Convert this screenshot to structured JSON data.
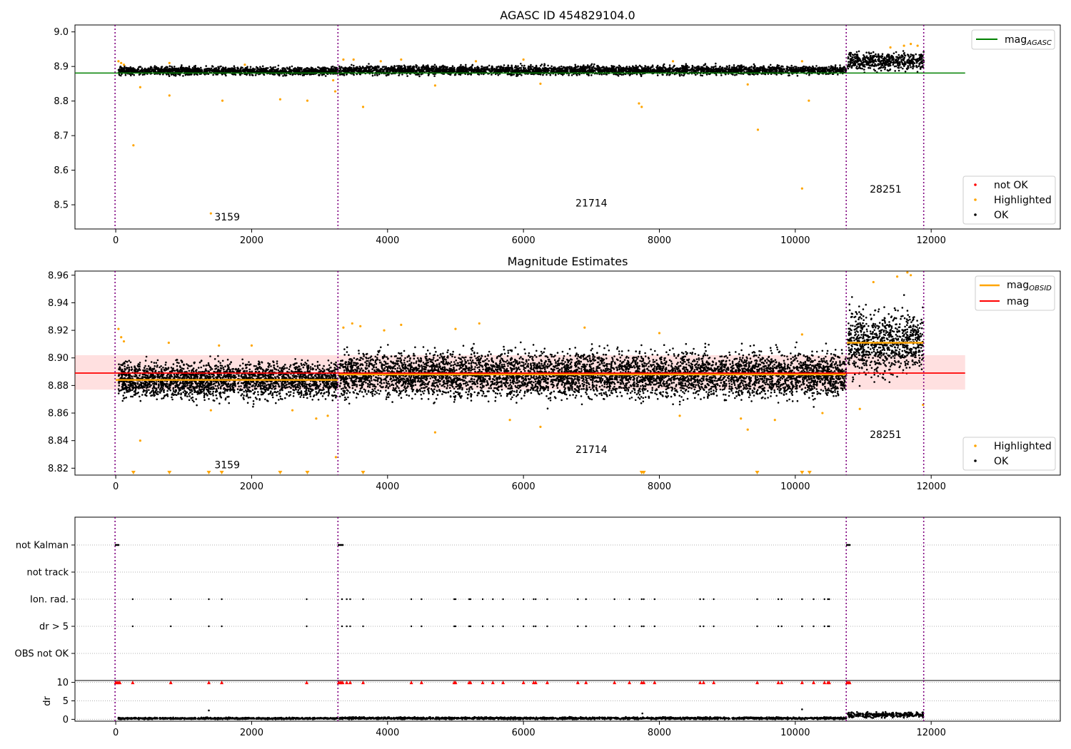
{
  "chart_data": [
    {
      "id": "top",
      "type": "scatter",
      "title": "AGASC ID 454829104.0",
      "xlim": [
        -600,
        13900
      ],
      "ylim": [
        8.43,
        9.02
      ],
      "xticks": [
        0,
        2000,
        4000,
        6000,
        8000,
        10000,
        12000
      ],
      "yticks": [
        8.5,
        8.6,
        8.7,
        8.8,
        8.9,
        9.0
      ],
      "ytick_labels": [
        "8.5",
        "8.6",
        "8.7",
        "8.8",
        "8.9",
        "9.0"
      ],
      "grid": false,
      "vlines": [
        -10,
        3270,
        10750,
        11890
      ],
      "obsid_labels": [
        {
          "text": "3159",
          "x": 1640,
          "y": 8.455
        },
        {
          "text": "21714",
          "x": 7000,
          "y": 8.495
        },
        {
          "text": "28251",
          "x": 11330,
          "y": 8.535
        }
      ],
      "hlines": [
        {
          "name": "mag_AGASC",
          "y": 8.881,
          "x0": -600,
          "x1": 12500,
          "color": "#008000"
        }
      ],
      "ok_segments": [
        {
          "x0": 40,
          "x1": 3270,
          "mean": 8.887,
          "spread": 0.008
        },
        {
          "x0": 3290,
          "x1": 10750,
          "mean": 8.889,
          "spread": 0.009
        },
        {
          "x0": 10770,
          "x1": 11890,
          "mean": 8.915,
          "spread": 0.018
        }
      ],
      "highlighted_points": [
        [
          40,
          8.915
        ],
        [
          80,
          8.91
        ],
        [
          120,
          8.905
        ],
        [
          260,
          8.672
        ],
        [
          360,
          8.84
        ],
        [
          790,
          8.816
        ],
        [
          790,
          8.91
        ],
        [
          1400,
          8.475
        ],
        [
          1570,
          8.801
        ],
        [
          1900,
          8.905
        ],
        [
          2420,
          8.805
        ],
        [
          2820,
          8.801
        ],
        [
          3200,
          8.86
        ],
        [
          3230,
          8.828
        ],
        [
          3350,
          8.92
        ],
        [
          3500,
          8.92
        ],
        [
          3640,
          8.783
        ],
        [
          3900,
          8.915
        ],
        [
          4200,
          8.92
        ],
        [
          4700,
          8.845
        ],
        [
          5300,
          8.915
        ],
        [
          6000,
          8.92
        ],
        [
          6250,
          8.85
        ],
        [
          7700,
          8.793
        ],
        [
          7740,
          8.783
        ],
        [
          8200,
          8.915
        ],
        [
          9450,
          8.717
        ],
        [
          9300,
          8.848
        ],
        [
          10100,
          8.547
        ],
        [
          10200,
          8.801
        ],
        [
          10100,
          8.915
        ],
        [
          11400,
          8.955
        ],
        [
          11600,
          8.96
        ],
        [
          11700,
          8.965
        ],
        [
          11800,
          8.96
        ]
      ],
      "legend_upper": [
        {
          "label": "mag",
          "sub": "AGASC",
          "color": "#008000",
          "kind": "line"
        }
      ],
      "legend_lower": [
        {
          "label": "not OK",
          "color": "#ff0000",
          "kind": "dot"
        },
        {
          "label": "Highlighted",
          "color": "#ffa500",
          "kind": "dot"
        },
        {
          "label": "OK",
          "color": "#000000",
          "kind": "dot"
        }
      ]
    },
    {
      "id": "mid",
      "type": "scatter",
      "title": "Magnitude Estimates",
      "xlim": [
        -600,
        13900
      ],
      "ylim": [
        8.815,
        8.963
      ],
      "xticks": [
        0,
        2000,
        4000,
        6000,
        8000,
        10000,
        12000
      ],
      "yticks": [
        8.82,
        8.84,
        8.86,
        8.88,
        8.9,
        8.92,
        8.94,
        8.96
      ],
      "ytick_labels": [
        "8.82",
        "8.84",
        "8.86",
        "8.88",
        "8.90",
        "8.92",
        "8.94",
        "8.96"
      ],
      "grid": false,
      "vlines": [
        -10,
        3270,
        10750,
        11890
      ],
      "obsid_labels": [
        {
          "text": "3159",
          "x": 1640,
          "y": 8.82
        },
        {
          "text": "21714",
          "x": 7000,
          "y": 8.831
        },
        {
          "text": "28251",
          "x": 11330,
          "y": 8.842
        }
      ],
      "band": {
        "x0": -600,
        "x1": 12500,
        "y0": 8.877,
        "y1": 8.902,
        "color": "#ff0000",
        "opacity": 0.12
      },
      "hlines": [
        {
          "name": "mag",
          "y": 8.889,
          "x0": -600,
          "x1": 12500,
          "color": "#ff0000"
        }
      ],
      "obsid_means": [
        {
          "x0": 0,
          "x1": 3270,
          "y": 8.884
        },
        {
          "x0": 3280,
          "x1": 10750,
          "y": 8.888
        },
        {
          "x0": 10760,
          "x1": 11890,
          "y": 8.911
        }
      ],
      "ok_segments": [
        {
          "x0": 40,
          "x1": 3270,
          "mean": 8.884,
          "spread": 0.009
        },
        {
          "x0": 3290,
          "x1": 10750,
          "mean": 8.888,
          "spread": 0.011
        },
        {
          "x0": 10770,
          "x1": 11890,
          "mean": 8.911,
          "spread": 0.016
        }
      ],
      "highlighted_points": [
        [
          40,
          8.921
        ],
        [
          80,
          8.915
        ],
        [
          120,
          8.912
        ],
        [
          360,
          8.84
        ],
        [
          780,
          8.911
        ],
        [
          1400,
          8.862
        ],
        [
          1520,
          8.909
        ],
        [
          2000,
          8.909
        ],
        [
          2600,
          8.862
        ],
        [
          2950,
          8.856
        ],
        [
          3120,
          8.858
        ],
        [
          3240,
          8.828
        ],
        [
          3350,
          8.922
        ],
        [
          3480,
          8.925
        ],
        [
          3600,
          8.923
        ],
        [
          3950,
          8.92
        ],
        [
          4200,
          8.924
        ],
        [
          4700,
          8.846
        ],
        [
          5000,
          8.921
        ],
        [
          5350,
          8.925
        ],
        [
          5800,
          8.855
        ],
        [
          6250,
          8.85
        ],
        [
          6900,
          8.922
        ],
        [
          8000,
          8.918
        ],
        [
          8300,
          8.858
        ],
        [
          9200,
          8.856
        ],
        [
          9300,
          8.848
        ],
        [
          9700,
          8.855
        ],
        [
          10100,
          8.917
        ],
        [
          10400,
          8.86
        ],
        [
          10950,
          8.863
        ],
        [
          11150,
          8.955
        ],
        [
          11500,
          8.959
        ],
        [
          11650,
          8.962
        ],
        [
          11700,
          8.96
        ],
        [
          11880,
          8.866
        ]
      ],
      "below_range_markers": [
        260,
        790,
        1370,
        1560,
        2420,
        2820,
        3640,
        7740,
        7770,
        9440,
        10100,
        10210
      ],
      "legend_upper": [
        {
          "label": "mag",
          "sub": "OBSID",
          "color": "#ffa500",
          "kind": "line"
        },
        {
          "label": "mag",
          "sub": "",
          "color": "#ff0000",
          "kind": "line"
        }
      ],
      "legend_lower": [
        {
          "label": "Highlighted",
          "color": "#ffa500",
          "kind": "dot"
        },
        {
          "label": "OK",
          "color": "#000000",
          "kind": "dot"
        }
      ]
    },
    {
      "id": "flags",
      "type": "scatter",
      "xlim": [
        -600,
        13900
      ],
      "categories": [
        "not Kalman",
        "not track",
        "Ion. rad.",
        "dr > 5",
        "OBS not OK"
      ],
      "grid": true,
      "vlines": [
        -10,
        3270,
        10750,
        11890
      ],
      "not_kalman_x": [
        0,
        20,
        40,
        3280,
        3300,
        3320,
        3340,
        10760,
        10780,
        10800
      ],
      "ion_rad_x": [
        250,
        810,
        1370,
        1560,
        2810,
        3330,
        3400,
        3450,
        3640,
        4350,
        4500,
        4980,
        5000,
        5200,
        5220,
        5400,
        5550,
        5700,
        6000,
        6150,
        6180,
        6350,
        6800,
        6920,
        7340,
        7560,
        7740,
        7770,
        7930,
        8600,
        8650,
        8800,
        9440,
        9750,
        9800,
        10100,
        10270,
        10430,
        10480,
        10500
      ],
      "dr5_x": [
        250,
        810,
        1370,
        1560,
        2810,
        3330,
        3400,
        3450,
        3640,
        4350,
        4500,
        4980,
        5000,
        5200,
        5220,
        5400,
        5550,
        5700,
        6000,
        6150,
        6180,
        6350,
        6800,
        6920,
        7340,
        7560,
        7740,
        7770,
        7930,
        8600,
        8650,
        8800,
        9440,
        9750,
        9800,
        10100,
        10270,
        10430,
        10480,
        10500
      ]
    },
    {
      "id": "dr",
      "type": "scatter",
      "ylabel": "dr",
      "xlim": [
        -600,
        13900
      ],
      "ylim": [
        -0.5,
        10.5
      ],
      "xticks": [
        0,
        2000,
        4000,
        6000,
        8000,
        10000,
        12000
      ],
      "yticks": [
        0,
        5,
        10
      ],
      "ytick_labels": [
        "0",
        "5",
        "10"
      ],
      "grid": true,
      "vlines": [
        -10,
        3270,
        10750,
        11890
      ],
      "clipped_markers_x": [
        0,
        20,
        40,
        60,
        250,
        810,
        1370,
        1560,
        2810,
        3280,
        3300,
        3320,
        3340,
        3400,
        3450,
        3640,
        4350,
        4500,
        4980,
        5000,
        5200,
        5220,
        5400,
        5550,
        5700,
        6000,
        6150,
        6180,
        6350,
        6800,
        6920,
        7340,
        7560,
        7740,
        7770,
        7930,
        8600,
        8650,
        8800,
        9440,
        9750,
        9800,
        10100,
        10270,
        10430,
        10480,
        10500,
        10760,
        10780,
        10800
      ],
      "ok_segments": [
        {
          "x0": 40,
          "x1": 3270,
          "mean": 0.25,
          "spread": 0.15
        },
        {
          "x0": 3290,
          "x1": 10750,
          "mean": 0.3,
          "spread": 0.2
        },
        {
          "x0": 10770,
          "x1": 11890,
          "mean": 1.2,
          "spread": 0.5
        }
      ],
      "outliers": [
        [
          1370,
          2.4
        ],
        [
          7750,
          1.6
        ],
        [
          10100,
          2.7
        ]
      ]
    }
  ]
}
